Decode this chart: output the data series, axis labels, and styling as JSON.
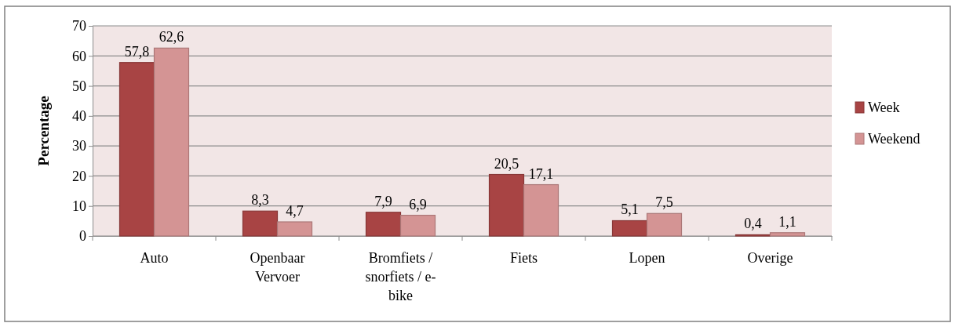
{
  "chart_data": {
    "type": "bar",
    "ylabel": "Percentage",
    "categories": [
      "Auto",
      "Openbaar Vervoer",
      "Bromfiets / snorfiets / e-bike",
      "Fiets",
      "Lopen",
      "Overige"
    ],
    "series": [
      {
        "name": "Week",
        "color": "#a84444",
        "values": [
          57.8,
          8.3,
          7.9,
          20.5,
          5.1,
          0.4
        ],
        "value_labels": [
          "57,8",
          "8,3",
          "7,9",
          "20,5",
          "5,1",
          "0,4"
        ]
      },
      {
        "name": "Weekend",
        "color": "#d49494",
        "values": [
          62.6,
          4.7,
          6.9,
          17.1,
          7.5,
          1.1
        ],
        "value_labels": [
          "62,6",
          "4,7",
          "6,9",
          "17,1",
          "7,5",
          "1,1"
        ]
      }
    ],
    "ylim": [
      0,
      70
    ],
    "yticks": [
      0,
      10,
      20,
      30,
      40,
      50,
      60,
      70
    ],
    "grid": "y",
    "legend": "right"
  }
}
